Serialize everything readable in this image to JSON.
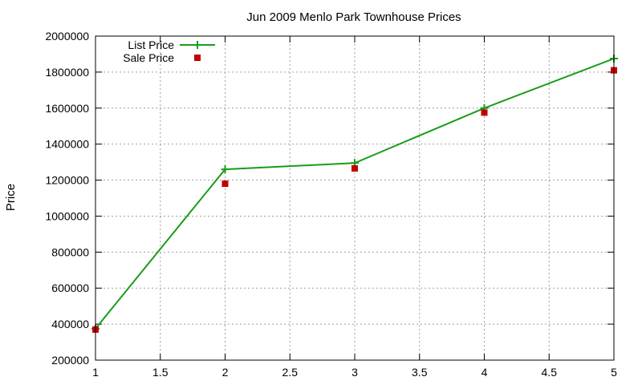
{
  "chart_data": {
    "type": "line",
    "title": "Jun 2009 Menlo Park Townhouse Prices",
    "xlabel": "",
    "ylabel": "Price",
    "xlim": [
      1,
      5
    ],
    "ylim": [
      200000,
      2000000
    ],
    "x_ticks": [
      1,
      1.5,
      2,
      2.5,
      3,
      3.5,
      4,
      4.5,
      5
    ],
    "x_tick_labels": [
      "1",
      "1.5",
      "2",
      "2.5",
      "3",
      "3.5",
      "4",
      "4.5",
      "5"
    ],
    "y_ticks": [
      200000,
      400000,
      600000,
      800000,
      1000000,
      1200000,
      1400000,
      1600000,
      1800000,
      2000000
    ],
    "y_tick_labels": [
      "200000",
      "400000",
      "600000",
      "800000",
      "1000000",
      "1200000",
      "1400000",
      "1600000",
      "1800000",
      "2000000"
    ],
    "grid": true,
    "legend_position": "top-left",
    "series": [
      {
        "name": "List Price",
        "style": "line-with-plus-markers",
        "color": "#1a9c1a",
        "x": [
          1,
          2,
          3,
          4,
          5
        ],
        "y": [
          375000,
          1260000,
          1295000,
          1600000,
          1875000
        ]
      },
      {
        "name": "Sale Price",
        "style": "square-markers",
        "color": "#c00000",
        "x": [
          1,
          2,
          3,
          4,
          5
        ],
        "y": [
          370000,
          1180000,
          1265000,
          1575000,
          1810000
        ]
      }
    ]
  }
}
